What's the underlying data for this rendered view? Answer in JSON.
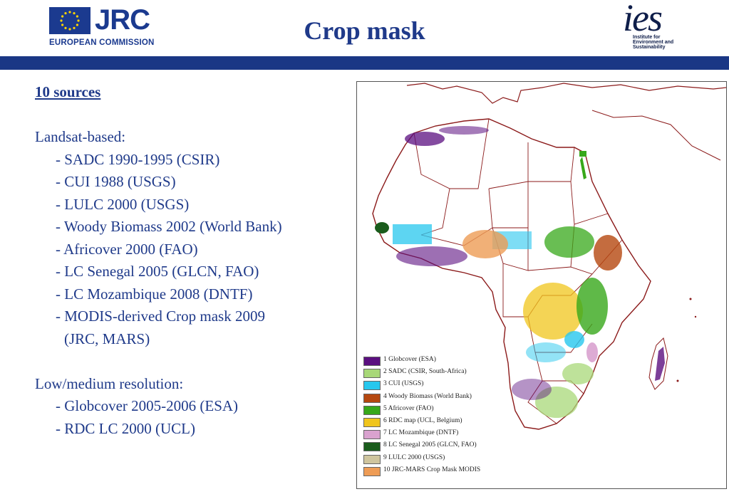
{
  "header": {
    "title": "Crop mask",
    "left_logo": {
      "name": "JRC",
      "subtitle": "EUROPEAN COMMISSION"
    },
    "right_logo": {
      "name": "ies",
      "subtitle_lines": [
        "Institute for",
        "Environment and",
        "Sustainability"
      ]
    }
  },
  "sources": {
    "heading": "10 sources",
    "landsat_title": "Landsat-based:",
    "landsat_items": [
      "- SADC 1990-1995 (CSIR)",
      "- CUI 1988 (USGS)",
      "- LULC 2000 (USGS)",
      "- Woody Biomass 2002 (World Bank)",
      "- Africover 2000 (FAO)",
      "- LC Senegal 2005 (GLCN, FAO)",
      "- LC Mozambique 2008 (DNTF)",
      "- MODIS-derived Crop mask 2009"
    ],
    "landsat_continuation": "(JRC, MARS)",
    "lowres_title": "Low/medium resolution:",
    "lowres_items": [
      "- Globcover 2005-2006 (ESA)",
      "- RDC LC 2000 (UCL)"
    ]
  },
  "map_legend": [
    {
      "label": "1 Globcover (ESA)",
      "color": "#5b0f80"
    },
    {
      "label": "2 SADC (CSIR, South-Africa)",
      "color": "#a8d878"
    },
    {
      "label": "3 CUI (USGS)",
      "color": "#27c7ee"
    },
    {
      "label": "4 Woody Biomass (World Bank)",
      "color": "#b5470f"
    },
    {
      "label": "5 Africover (FAO)",
      "color": "#37a81a"
    },
    {
      "label": "6 RDC map (UCL, Belgium)",
      "color": "#f0c51c"
    },
    {
      "label": "7 LC Mozambique (DNTF)",
      "color": "#d9a2cf"
    },
    {
      "label": "8 LC Senegal 2005 (GLCN, FAO)",
      "color": "#1a5c1c"
    },
    {
      "label": "9 LULC 2000 (USGS)",
      "color": "#cfc59e"
    },
    {
      "label": "10 JRC-MARS Crop Mask MODIS",
      "color": "#ee9c55"
    }
  ],
  "colors": {
    "accent": "#1a3785",
    "text": "#1f3a8a",
    "border": "#8b1a1a"
  }
}
